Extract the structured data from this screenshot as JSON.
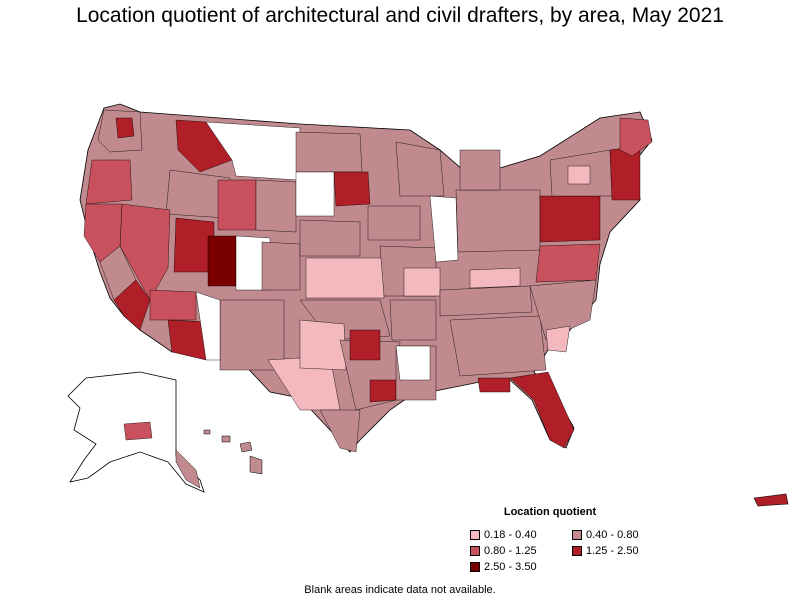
{
  "title": "Location quotient of architectural and civil drafters, by area, May 2021",
  "legend": {
    "title": "Location quotient",
    "items": [
      {
        "label": "0.18 - 0.40",
        "color": "#f4b8bf"
      },
      {
        "label": "0.40 - 0.80",
        "color": "#c08a8e"
      },
      {
        "label": "0.80 - 1.25",
        "color": "#c9515d"
      },
      {
        "label": "1.25 - 2.50",
        "color": "#b01f28"
      },
      {
        "label": "2.50 - 3.50",
        "color": "#7a0000"
      }
    ]
  },
  "footnote": "Blank areas indicate data not available."
}
